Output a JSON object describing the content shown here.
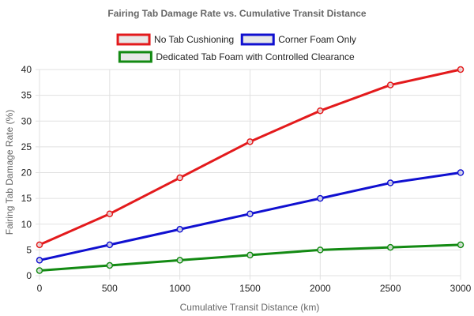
{
  "chart_data": {
    "type": "line",
    "title": "Fairing Tab Damage Rate vs. Cumulative Transit Distance",
    "xlabel": "Cumulative Transit Distance (km)",
    "ylabel": "Fairing Tab Damage Rate (%)",
    "x": [
      0,
      500,
      1000,
      1500,
      2000,
      2500,
      3000
    ],
    "xlim": [
      0,
      3000
    ],
    "ylim": [
      0,
      40
    ],
    "xticks": [
      "0",
      "500",
      "1000",
      "1500",
      "2000",
      "2500",
      "3000"
    ],
    "yticks": [
      "0",
      "5",
      "10",
      "15",
      "20",
      "25",
      "30",
      "35",
      "40"
    ],
    "grid": true,
    "legend_position": "top",
    "series": [
      {
        "name": "No Tab Cushioning",
        "color": "#e31a1c",
        "values": [
          6,
          12,
          19,
          26,
          32,
          37,
          40
        ]
      },
      {
        "name": "Corner Foam Only",
        "color": "#1010d0",
        "values": [
          3,
          6,
          9,
          12,
          15,
          18,
          20
        ]
      },
      {
        "name": "Dedicated Tab Foam with Controlled Clearance",
        "color": "#138a13",
        "values": [
          1,
          2,
          3,
          4,
          5,
          5.5,
          6
        ]
      }
    ]
  }
}
